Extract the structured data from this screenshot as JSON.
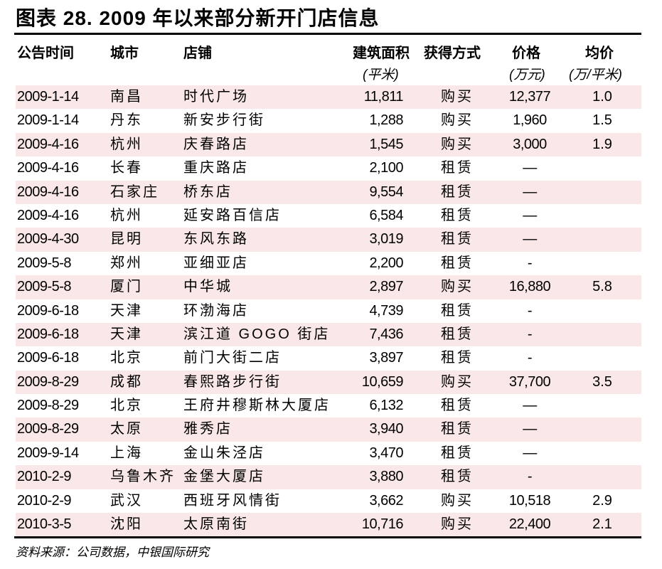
{
  "title": "图表 28. 2009 年以来部分新开门店信息",
  "headers": [
    "公告时间",
    "城市",
    "店铺",
    "建筑面积",
    "获得方式",
    "价格",
    "均价"
  ],
  "units": {
    "area": "(平米)",
    "price": "(万元)",
    "avg": "(万/平米)"
  },
  "rows": [
    [
      "2009-1-14",
      "南昌",
      "时代广场",
      "11,811",
      "购买",
      "12,377",
      "1.0"
    ],
    [
      "2009-1-14",
      "丹东",
      "新安步行街",
      "1,288",
      "购买",
      "1,960",
      "1.5"
    ],
    [
      "2009-4-16",
      "杭州",
      "庆春路店",
      "1,545",
      "购买",
      "3,000",
      "1.9"
    ],
    [
      "2009-4-16",
      "长春",
      "重庆路店",
      "2,100",
      "租赁",
      "—",
      ""
    ],
    [
      "2009-4-16",
      "石家庄",
      "桥东店",
      "9,554",
      "租赁",
      "—",
      ""
    ],
    [
      "2009-4-16",
      "杭州",
      "延安路百信店",
      "6,584",
      "租赁",
      "—",
      ""
    ],
    [
      "2009-4-30",
      "昆明",
      "东风东路",
      "3,019",
      "租赁",
      "—",
      ""
    ],
    [
      "2009-5-8",
      "郑州",
      "亚细亚店",
      "2,200",
      "租赁",
      "-",
      ""
    ],
    [
      "2009-5-8",
      "厦门",
      "中华城",
      "2,897",
      "购买",
      "16,880",
      "5.8"
    ],
    [
      "2009-6-18",
      "天津",
      "环渤海店",
      "4,739",
      "租赁",
      "-",
      ""
    ],
    [
      "2009-6-18",
      "天津",
      "滨江道 GOGO 街店",
      "7,436",
      "租赁",
      "-",
      ""
    ],
    [
      "2009-6-18",
      "北京",
      "前门大街二店",
      "3,897",
      "租赁",
      "-",
      ""
    ],
    [
      "2009-8-29",
      "成都",
      "春熙路步行街",
      "10,659",
      "购买",
      "37,700",
      "3.5"
    ],
    [
      "2009-8-29",
      "北京",
      "王府井穆斯林大厦店",
      "6,132",
      "租赁",
      "—",
      ""
    ],
    [
      "2009-8-29",
      "太原",
      "雅秀店",
      "3,940",
      "租赁",
      "—",
      ""
    ],
    [
      "2009-9-14",
      "上海",
      "金山朱泾店",
      "3,470",
      "租赁",
      "—",
      ""
    ],
    [
      "2010-2-9",
      "乌鲁木齐",
      "金堡大厦店",
      "3,880",
      "租赁",
      "-",
      ""
    ],
    [
      "2010-2-9",
      "武汉",
      "西班牙风情街",
      "3,662",
      "购买",
      "10,518",
      "2.9"
    ],
    [
      "2010-3-5",
      "沈阳",
      "太原南街",
      "10,716",
      "购买",
      "22,400",
      "2.1"
    ]
  ],
  "source": "资料来源：公司数据，中银国际研究",
  "colors": {
    "stripe": "#fae8e8"
  }
}
